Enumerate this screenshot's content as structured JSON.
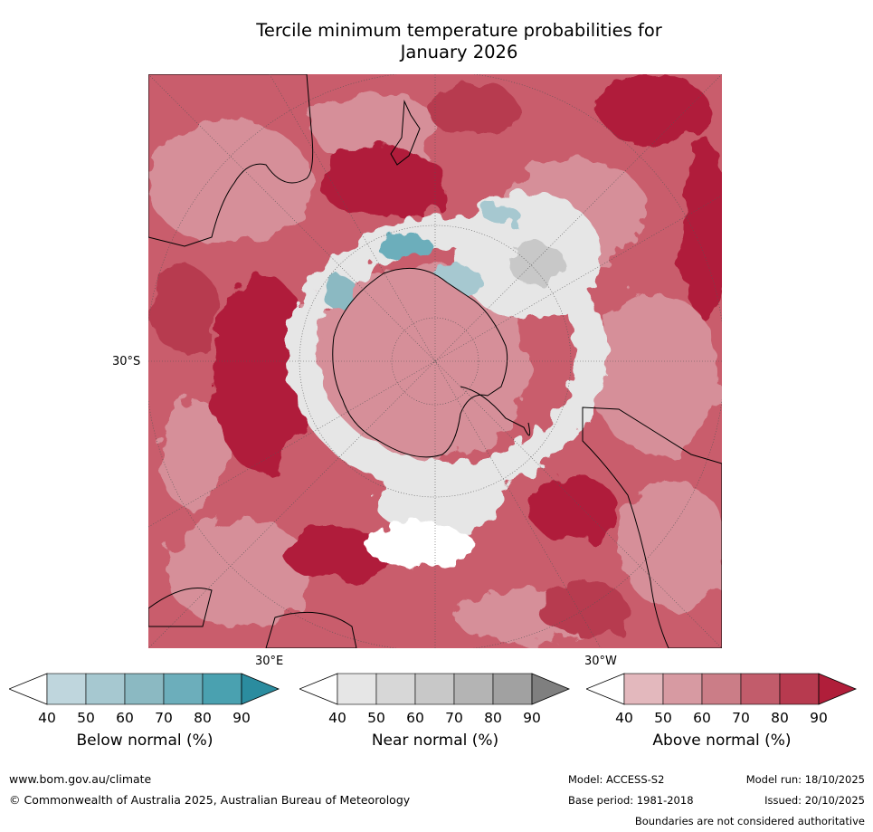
{
  "title": {
    "line1": "Tercile minimum temperature probabilities for",
    "line2": "January 2026"
  },
  "map": {
    "projection": "south-polar-stereographic",
    "grid_labels": {
      "lat": "30°S",
      "lon_east": "30°E",
      "lon_west": "30°W"
    }
  },
  "colorbars": [
    {
      "name": "below",
      "label": "Below normal (%)",
      "ticks": [
        "40",
        "50",
        "60",
        "70",
        "80",
        "90"
      ],
      "colors": [
        "#bfd6dd",
        "#a6c8d0",
        "#8bb9c2",
        "#6caebb",
        "#4aa1b0",
        "#2b8c9f"
      ]
    },
    {
      "name": "near",
      "label": "Near normal (%)",
      "ticks": [
        "40",
        "50",
        "60",
        "70",
        "80",
        "90"
      ],
      "colors": [
        "#e6e6e6",
        "#d7d7d7",
        "#c8c8c8",
        "#b4b4b4",
        "#a1a1a1",
        "#7f7f7f"
      ]
    },
    {
      "name": "above",
      "label": "Above normal (%)",
      "ticks": [
        "40",
        "50",
        "60",
        "70",
        "80",
        "90"
      ],
      "colors": [
        "#e3b8bd",
        "#d79aa2",
        "#cb7d87",
        "#c25c6b",
        "#b73a4f",
        "#b01e3a"
      ]
    }
  ],
  "footer": {
    "website": "www.bom.gov.au/climate",
    "copyright": "© Commonwealth of Australia 2025, Australian Bureau of Meteorology",
    "model": "Model: ACCESS-S2",
    "model_run": "Model run: 18/10/2025",
    "base_period": "Base period: 1981-2018",
    "issued": "Issued: 20/10/2025",
    "disclaimer": "Boundaries are not considered authoritative"
  }
}
